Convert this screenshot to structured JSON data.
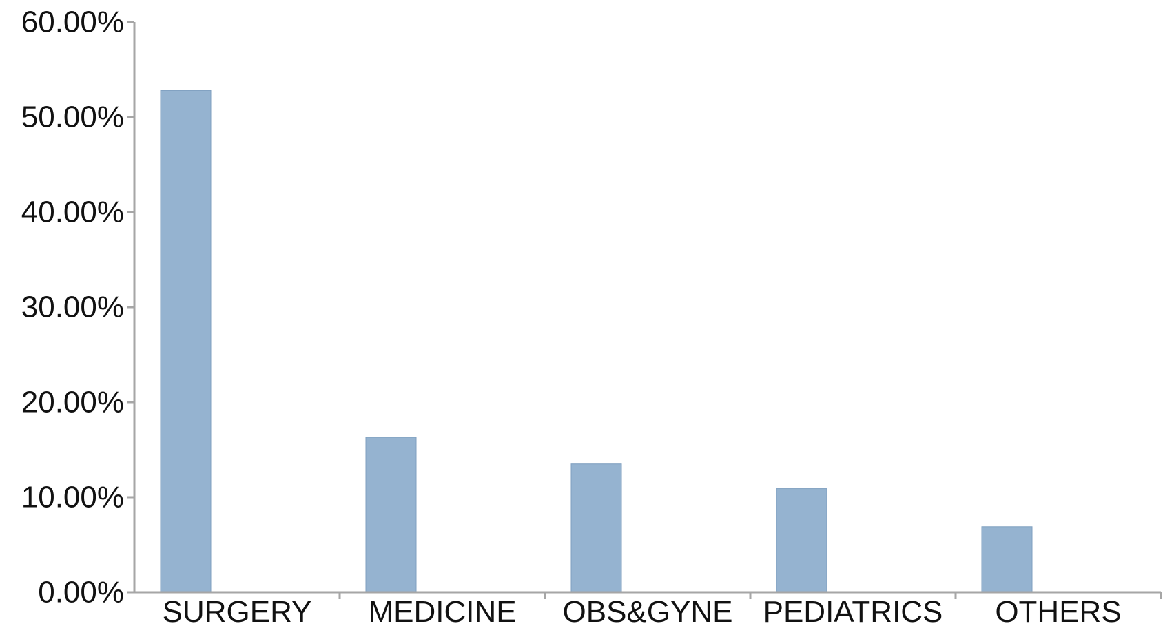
{
  "chart_data": {
    "type": "bar",
    "title": "",
    "xlabel": "",
    "ylabel": "",
    "categories": [
      "SURGERY",
      "MEDICINE",
      "OBS&GYNE",
      "PEDIATRICS",
      "OTHERS"
    ],
    "values": [
      52.8,
      16.3,
      13.5,
      10.9,
      6.9
    ],
    "ylim": [
      0,
      60
    ],
    "yticks": [
      0,
      10,
      20,
      30,
      40,
      50,
      60
    ],
    "ytick_labels": [
      "0.00%",
      "10.00%",
      "20.00%",
      "30.00%",
      "40.00%",
      "50.00%",
      "60.00%"
    ],
    "grid": false,
    "legend": "none",
    "bar_color": "#95b3d0",
    "axis_color": "#a6a6a6"
  }
}
